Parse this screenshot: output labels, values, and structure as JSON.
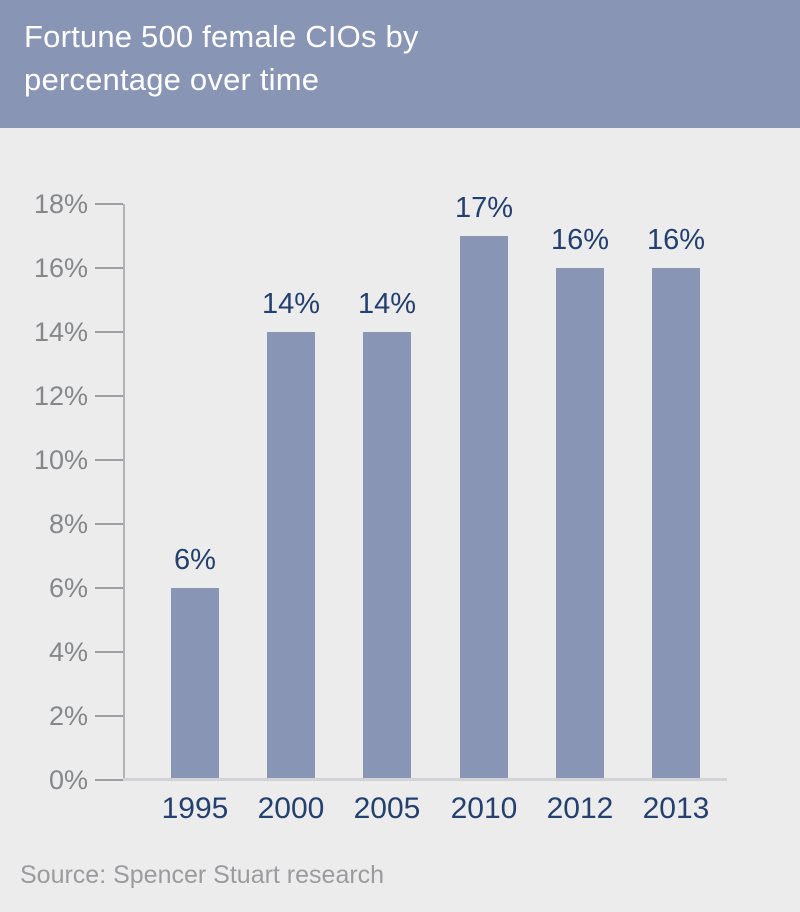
{
  "header": {
    "title_line1": "Fortune 500 female CIOs by",
    "title_line2": "percentage over time"
  },
  "chart_data": {
    "type": "bar",
    "title": "Fortune 500 female CIOs by percentage over time",
    "categories": [
      "1995",
      "2000",
      "2005",
      "2010",
      "2012",
      "2013"
    ],
    "values": [
      6,
      14,
      14,
      17,
      16,
      16
    ],
    "data_labels": [
      "6%",
      "14%",
      "14%",
      "17%",
      "16%",
      "16%"
    ],
    "xlabel": "",
    "ylabel": "",
    "ylim": [
      0,
      18
    ],
    "ytick_step": 2,
    "ytick_labels": [
      "0%",
      "2%",
      "4%",
      "6%",
      "8%",
      "10%",
      "12%",
      "14%",
      "16%",
      "18%"
    ],
    "grid": false,
    "legend": "none",
    "bar_color": "#8995b5"
  },
  "source": {
    "label": "Source: Spencer Stuart research"
  },
  "colors": {
    "header_bg": "#8995b5",
    "bar": "#8995b5",
    "page_bg": "#ececed",
    "value_label_navy": "#24406f",
    "axis_label_gray": "#85878a",
    "source_gray": "#9b9b9e",
    "title_white": "#ffffff"
  }
}
